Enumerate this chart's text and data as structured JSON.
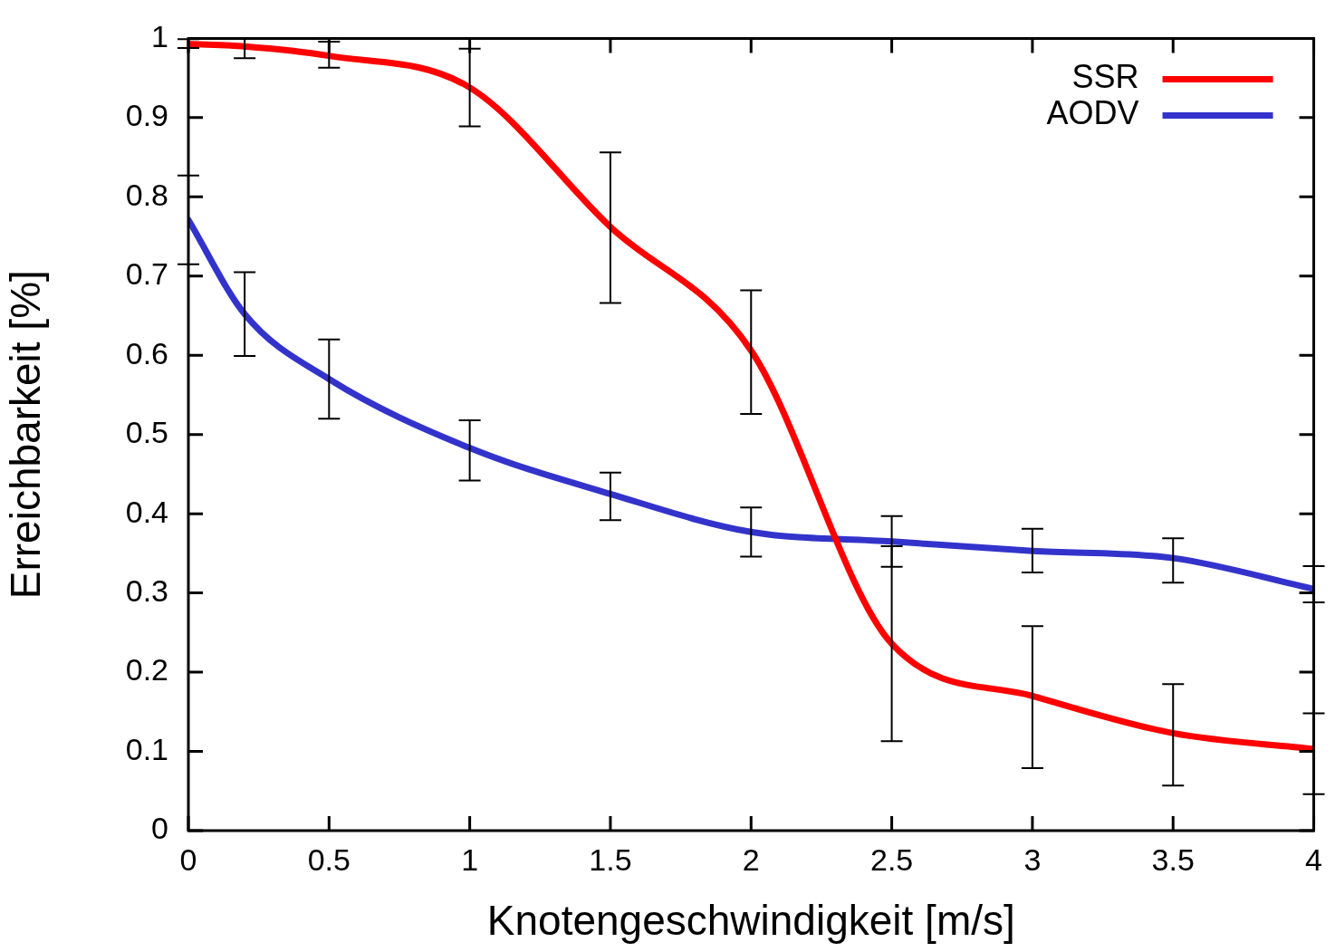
{
  "chart_data": {
    "type": "line",
    "xlabel": "Knotengeschwindigkeit [m/s]",
    "ylabel": "Erreichbarkeit [%]",
    "x": [
      0,
      0.2,
      0.5,
      1,
      1.5,
      2,
      2.5,
      3,
      3.5,
      4
    ],
    "series": [
      {
        "name": "SSR",
        "color": "#ff0000",
        "values": [
          0.993,
          0.99,
          0.978,
          0.938,
          0.762,
          0.606,
          0.236,
          0.17,
          0.123,
          0.103
        ],
        "errors": [
          [
            0.988,
            0.999
          ],
          [
            0.975,
            1.0
          ],
          [
            0.963,
            0.996
          ],
          [
            0.889,
            0.987
          ],
          [
            0.666,
            0.856
          ],
          [
            0.526,
            0.682
          ],
          [
            0.113,
            0.359
          ],
          [
            0.079,
            0.258
          ],
          [
            0.057,
            0.185
          ],
          [
            0.046,
            0.148
          ]
        ]
      },
      {
        "name": "AODV",
        "color": "#3333cc",
        "values": [
          0.771,
          0.652,
          0.57,
          0.483,
          0.425,
          0.377,
          0.365,
          0.353,
          0.344,
          0.305
        ],
        "errors": [
          [
            0.715,
            0.827
          ],
          [
            0.599,
            0.705
          ],
          [
            0.52,
            0.62
          ],
          [
            0.442,
            0.518
          ],
          [
            0.392,
            0.452
          ],
          [
            0.346,
            0.408
          ],
          [
            0.333,
            0.397
          ],
          [
            0.326,
            0.381
          ],
          [
            0.313,
            0.369
          ],
          [
            0.288,
            0.334
          ]
        ]
      }
    ],
    "xlim": [
      0,
      4
    ],
    "xticks": [
      0,
      0.5,
      1,
      1.5,
      2,
      2.5,
      3,
      3.5,
      4
    ],
    "ylim": [
      0,
      1
    ],
    "yticks": [
      0,
      0.1,
      0.2,
      0.3,
      0.4,
      0.5,
      0.6,
      0.7,
      0.8,
      0.9,
      1
    ],
    "grid": false,
    "legend": "top right",
    "marker": "none",
    "line_style": "solid"
  }
}
